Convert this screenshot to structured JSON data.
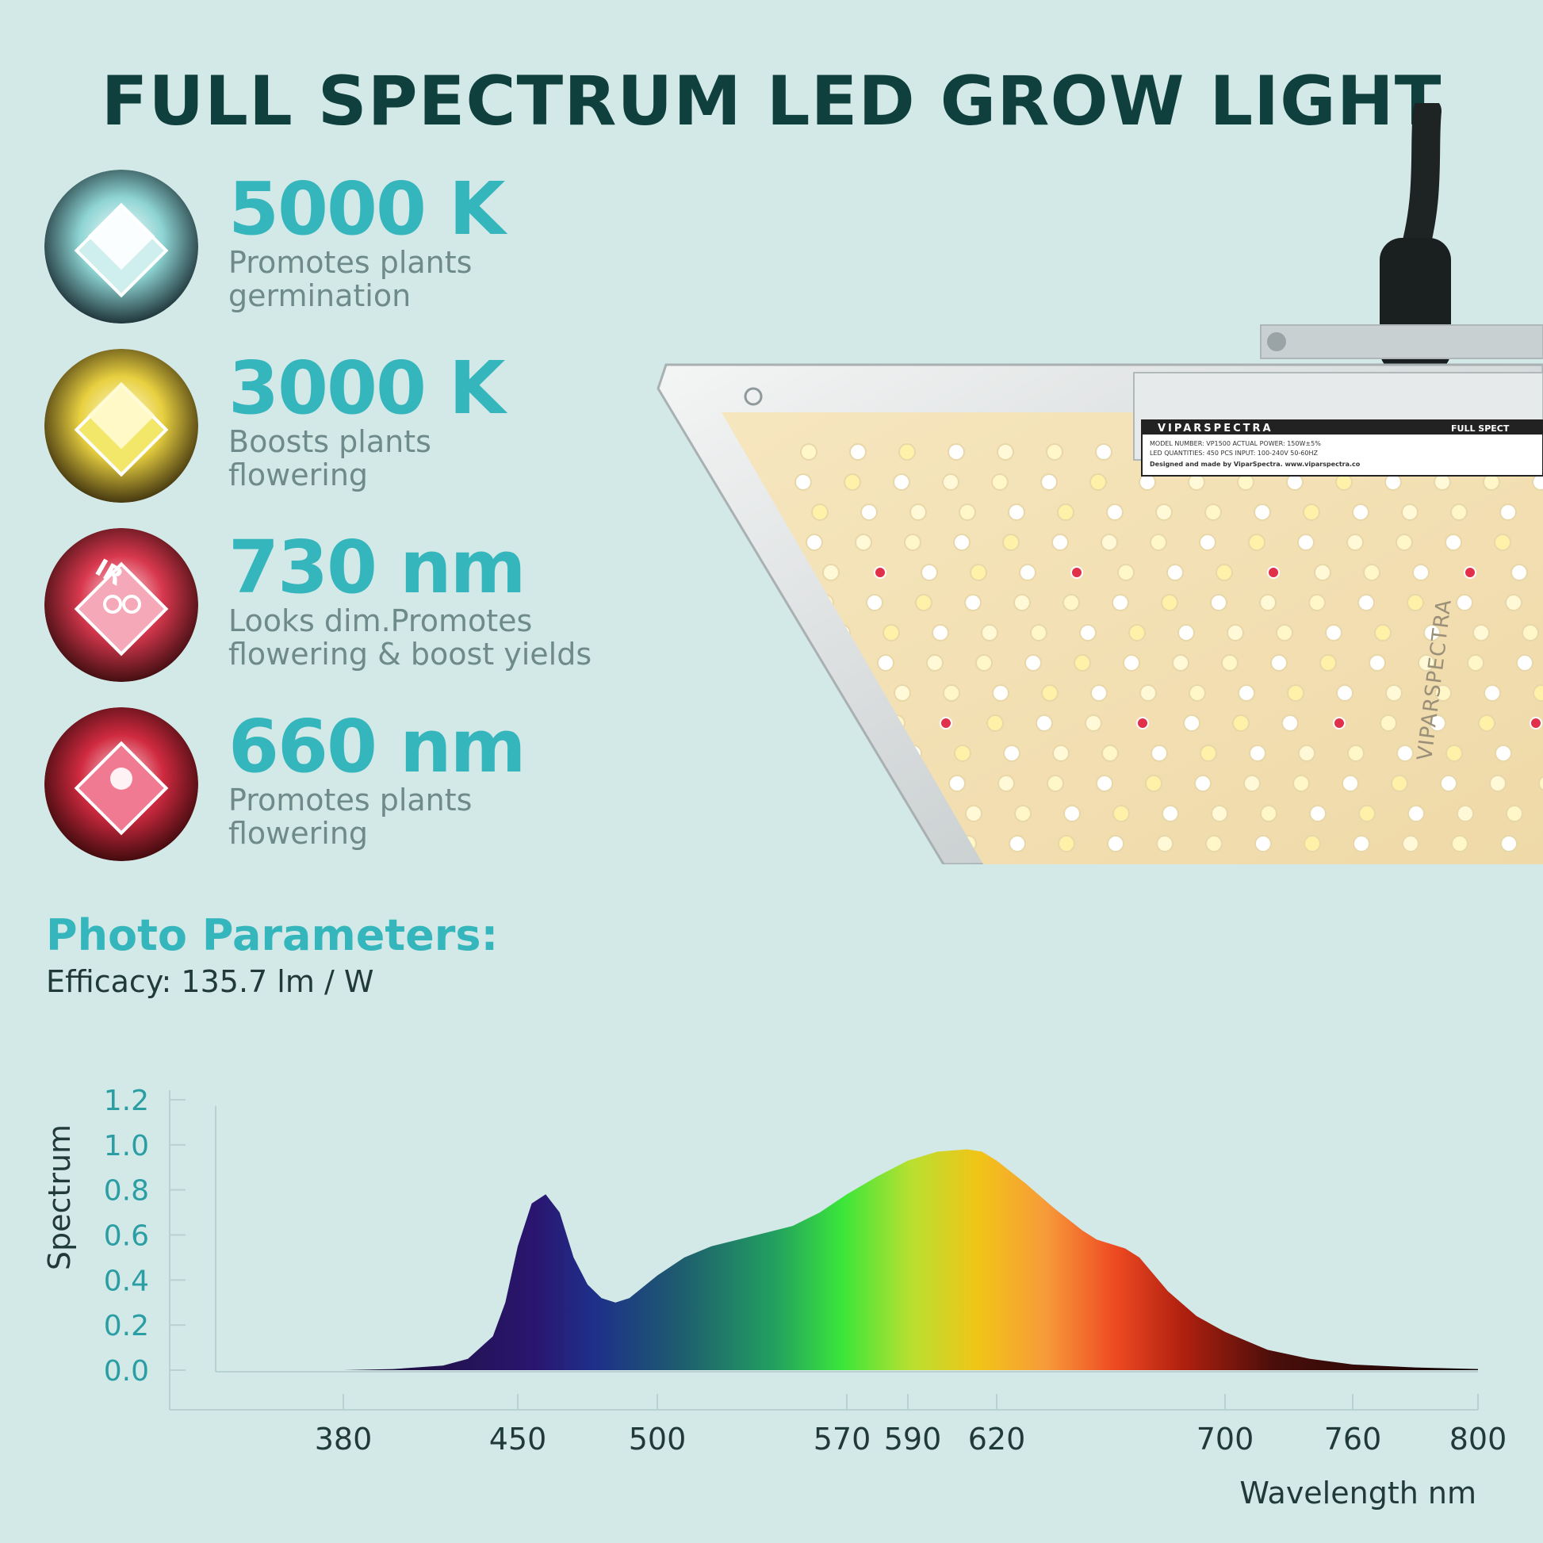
{
  "title": "FULL SPECTRUM LED GROW LIGHT",
  "features": [
    {
      "value": "5000 K",
      "line1": "Promotes plants",
      "line2": "germination",
      "icon": "white-led-chip-icon",
      "color": "#eaf7f6"
    },
    {
      "value": "3000 K",
      "line1": "Boosts plants",
      "line2": "flowering",
      "icon": "warm-yellow-led-chip-icon",
      "color": "#f7ec7a"
    },
    {
      "value": "730 nm",
      "line1": "Looks dim.Promotes",
      "line2": "flowering & boost yields",
      "icon": "ir-led-chip-icon",
      "color": "#f2b6c4"
    },
    {
      "value": "660 nm",
      "line1": "Promotes plants",
      "line2": "flowering",
      "icon": "red-led-chip-icon",
      "color": "#f07a92"
    }
  ],
  "params": {
    "title": "Photo Parameters:",
    "efficacy": "Efficacy: 135.7 lm / W"
  },
  "lamp": {
    "brand": "VIPARSPECTRA",
    "label_right": "FULL SPECT",
    "label_lines": [
      "MODEL NUMBER: VP1500   ACTUAL POWER: 150W±5%",
      "LED QUANTITIES: 450 PCS   INPUT: 100-240V 50-60HZ",
      "Designed and made by ViparSpectra.   www.viparspectra.co"
    ]
  },
  "chart_data": {
    "type": "area",
    "xlabel": "Wavelength nm",
    "ylabel": "Spectrum",
    "ylim": [
      0,
      1.2
    ],
    "y_ticks": [
      "0.0",
      "0.2",
      "0.4",
      "0.6",
      "0.8",
      "1.0",
      "1.2"
    ],
    "x_ticks": [
      380,
      450,
      500,
      570,
      590,
      620,
      700,
      760,
      800
    ],
    "grid": false,
    "x": [
      345,
      380,
      400,
      420,
      430,
      440,
      445,
      450,
      455,
      460,
      465,
      470,
      475,
      480,
      485,
      490,
      495,
      500,
      510,
      520,
      530,
      540,
      550,
      560,
      570,
      580,
      590,
      600,
      610,
      615,
      620,
      630,
      640,
      650,
      655,
      660,
      665,
      670,
      680,
      690,
      700,
      720,
      740,
      760,
      780,
      800
    ],
    "values": [
      0.0,
      0.0,
      0.005,
      0.02,
      0.05,
      0.15,
      0.3,
      0.55,
      0.74,
      0.78,
      0.7,
      0.5,
      0.38,
      0.32,
      0.3,
      0.32,
      0.37,
      0.42,
      0.5,
      0.55,
      0.58,
      0.61,
      0.64,
      0.7,
      0.78,
      0.86,
      0.93,
      0.97,
      0.98,
      0.97,
      0.93,
      0.83,
      0.72,
      0.62,
      0.58,
      0.56,
      0.54,
      0.5,
      0.35,
      0.24,
      0.17,
      0.09,
      0.05,
      0.025,
      0.012,
      0.005
    ]
  }
}
